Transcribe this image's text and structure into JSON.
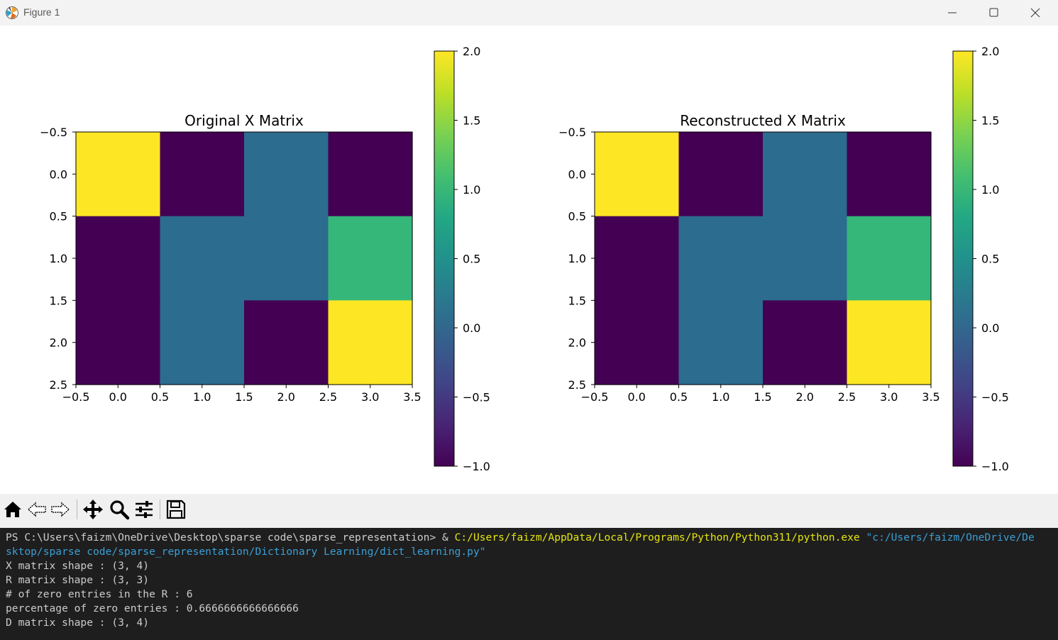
{
  "window": {
    "title": "Figure 1"
  },
  "colors": {
    "viridis_min": "#440154",
    "viridis_max": "#fde725",
    "cell_colors": {
      "-1": "#440154",
      "0": "#2c6c8f",
      "1": "#35b779",
      "2": "#fde725"
    },
    "terminal_bg": "#1e1e1e",
    "terminal_yellow": "#e5e510",
    "terminal_cyan": "#3c9fd6"
  },
  "chart_data": [
    {
      "type": "heatmap",
      "title": "Original X Matrix",
      "values": [
        [
          2,
          -1,
          0,
          -1
        ],
        [
          -1,
          0,
          0,
          1
        ],
        [
          -1,
          0,
          -1,
          2
        ]
      ],
      "xlim": [
        -0.5,
        3.5
      ],
      "ylim": [
        2.5,
        -0.5
      ],
      "xticks": [
        "−0.5",
        "0.0",
        "0.5",
        "1.0",
        "1.5",
        "2.0",
        "2.5",
        "3.0",
        "3.5"
      ],
      "yticks": [
        "−0.5",
        "0.0",
        "0.5",
        "1.0",
        "1.5",
        "2.0",
        "2.5"
      ],
      "colorbar": {
        "range": [
          -1,
          2
        ],
        "ticks": [
          "−1.0",
          "−0.5",
          "0.0",
          "0.5",
          "1.0",
          "1.5",
          "2.0"
        ],
        "colormap": "viridis"
      },
      "grid": false
    },
    {
      "type": "heatmap",
      "title": "Reconstructed X Matrix",
      "values": [
        [
          2,
          -1,
          0,
          -1
        ],
        [
          -1,
          0,
          0,
          1
        ],
        [
          -1,
          0,
          -1,
          2
        ]
      ],
      "xlim": [
        -0.5,
        3.5
      ],
      "ylim": [
        2.5,
        -0.5
      ],
      "xticks": [
        "−0.5",
        "0.0",
        "0.5",
        "1.0",
        "1.5",
        "2.0",
        "2.5",
        "3.0",
        "3.5"
      ],
      "yticks": [
        "−0.5",
        "0.0",
        "0.5",
        "1.0",
        "1.5",
        "2.0",
        "2.5"
      ],
      "colorbar": {
        "range": [
          -1,
          2
        ],
        "ticks": [
          "−1.0",
          "−0.5",
          "0.0",
          "0.5",
          "1.0",
          "1.5",
          "2.0"
        ],
        "colormap": "viridis"
      },
      "grid": false
    }
  ],
  "toolbar": {
    "icons": [
      "home-icon",
      "back-icon",
      "forward-icon",
      "pan-icon",
      "zoom-icon",
      "configure-subplots-icon",
      "save-icon"
    ]
  },
  "terminal": {
    "line1_prompt": "PS C:\\Users\\faizm\\OneDrive\\Desktop\\sparse code\\sparse_representation> & ",
    "line1_exe": "C:/Users/faizm/AppData/Local/Programs/Python/Python311/python.exe",
    "line1_arg": " \"c:/Users/faizm/OneDrive/De",
    "line2_arg": "sktop/sparse code/sparse_representation/Dictionary Learning/dict_learning.py\"",
    "output": [
      "X matrix shape : (3, 4)",
      "R matrix shape : (3, 3)",
      "# of zero entries in the R : 6",
      "percentage of zero entries : 0.6666666666666666",
      "D matrix shape : (3, 4)"
    ]
  }
}
